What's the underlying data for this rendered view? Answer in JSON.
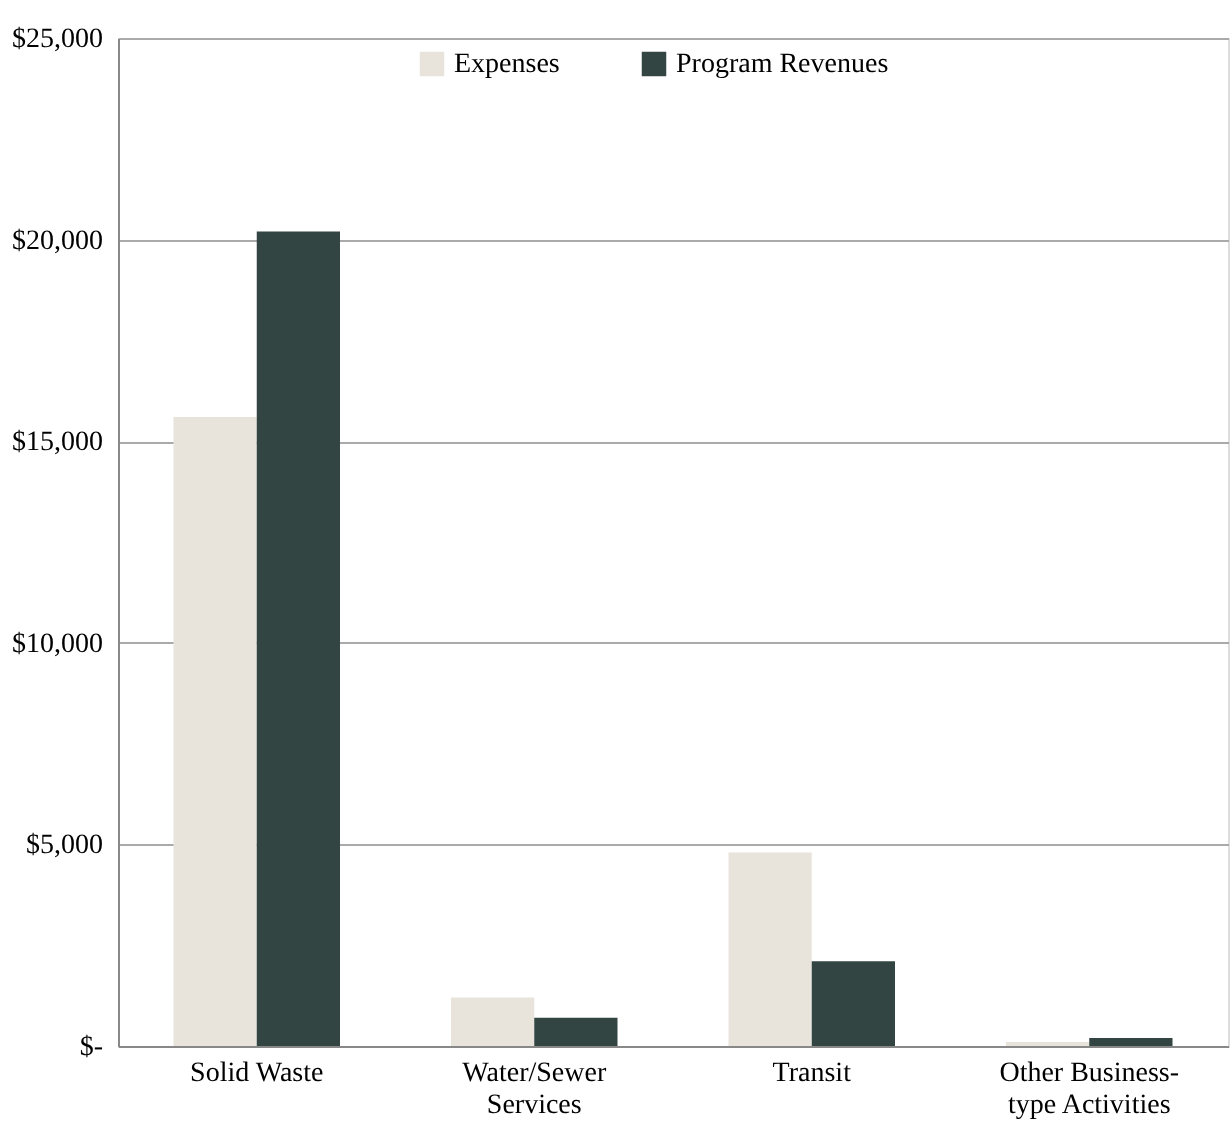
{
  "chart_data": {
    "type": "bar",
    "categories": [
      "Solid Waste",
      "Water/Sewer\nServices",
      "Transit",
      "Other Business-\ntype Activities"
    ],
    "series": [
      {
        "name": "Expenses",
        "color": "#e8e4dc",
        "values": [
          15600,
          1200,
          4800,
          100
        ]
      },
      {
        "name": "Program Revenues",
        "color": "#324542",
        "values": [
          20200,
          700,
          2100,
          200
        ]
      }
    ],
    "ylim": [
      0,
      25000
    ],
    "yticks": [
      {
        "value": 0,
        "label": "$-"
      },
      {
        "value": 5000,
        "label": "$5,000"
      },
      {
        "value": 10000,
        "label": "$10,000"
      },
      {
        "value": 15000,
        "label": "$15,000"
      },
      {
        "value": 20000,
        "label": "$20,000"
      },
      {
        "value": 25000,
        "label": "$25,000"
      }
    ],
    "grid": "y",
    "legend": "top"
  }
}
